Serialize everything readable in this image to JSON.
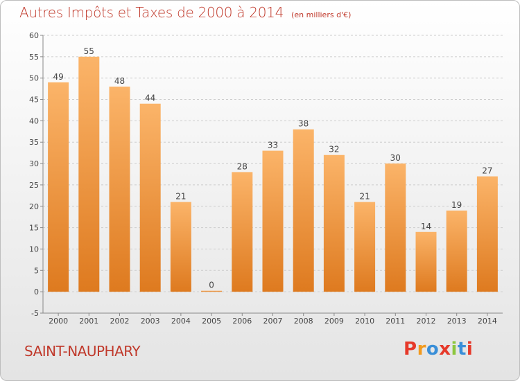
{
  "header": {
    "title": "Autres Impôts et Taxes de 2000 à 2014",
    "unit_note": "(en milliers d'€)"
  },
  "footer": {
    "commune": "SAINT-NAUPHARY",
    "logo_text": "Proxiti",
    "logo_colors": [
      "#e6392a",
      "#f29a1e",
      "#3a8fd8",
      "#e6392a",
      "#8cc63e",
      "#3a8fd8",
      "#e6392a"
    ]
  },
  "colors": {
    "bar_top": "#fbb469",
    "bar_bottom": "#de7a1f",
    "title": "#c0392b",
    "grid": "#cccccc"
  },
  "chart_data": {
    "type": "bar",
    "title": "Autres Impôts et Taxes de 2000 à 2014",
    "categories": [
      "2000",
      "2001",
      "2002",
      "2003",
      "2004",
      "2005",
      "2006",
      "2007",
      "2008",
      "2009",
      "2010",
      "2011",
      "2012",
      "2013",
      "2014"
    ],
    "values": [
      49,
      55,
      48,
      44,
      21,
      0,
      28,
      33,
      38,
      32,
      21,
      30,
      14,
      19,
      27
    ],
    "ylim": [
      -5,
      60
    ],
    "yticks": [
      -5,
      0,
      5,
      10,
      15,
      20,
      25,
      30,
      35,
      40,
      45,
      50,
      55,
      60
    ],
    "grid": "horizontal dashed",
    "legend": "none"
  }
}
